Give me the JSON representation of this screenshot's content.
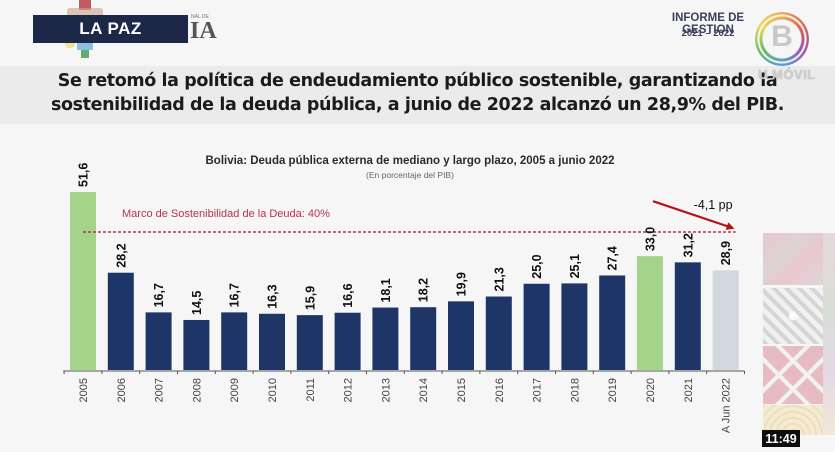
{
  "header": {
    "location_badge": "LA PAZ",
    "brand_small": "NAL DE",
    "brand_big": "IA",
    "report_title": "INFORME DE GESTION",
    "report_years": "2021 – 2022",
    "logo_letter": "B",
    "channel_watermark": "U MÓVIL"
  },
  "banner": {
    "headline": "Se retomó la política de endeudamiento público sostenible, garantizando la sostenibilidad de la deuda pública, a junio de 2022 alcanzó un 28,9% del PIB."
  },
  "clock": "11:49",
  "chart_data": {
    "type": "bar",
    "title": "Bolivia: Deuda pública externa de mediano y largo plazo, 2005 a junio 2022",
    "subtitle": "(En porcentaje del PIB)",
    "xlabel": "",
    "ylabel": "",
    "ylim": [
      0,
      55
    ],
    "grid": false,
    "categories": [
      "2005",
      "2006",
      "2007",
      "2008",
      "2009",
      "2010",
      "2011",
      "2012",
      "2013",
      "2014",
      "2015",
      "2016",
      "2017",
      "2018",
      "2019",
      "2020",
      "2021",
      "A Jun 2022"
    ],
    "values": [
      51.6,
      28.2,
      16.7,
      14.5,
      16.7,
      16.3,
      15.9,
      16.6,
      18.1,
      18.2,
      19.9,
      21.3,
      25.0,
      25.1,
      27.4,
      33.0,
      31.2,
      28.9
    ],
    "value_labels": [
      "51,6",
      "28,2",
      "16,7",
      "14,5",
      "16,7",
      "16,3",
      "15,9",
      "16,6",
      "18,1",
      "18,2",
      "19,9",
      "21,3",
      "25,0",
      "25,1",
      "27,4",
      "33,0",
      "31,2",
      "28,9"
    ],
    "bar_colors": [
      "#a3d48a",
      "#1e3568",
      "#1e3568",
      "#1e3568",
      "#1e3568",
      "#1e3568",
      "#1e3568",
      "#1e3568",
      "#1e3568",
      "#1e3568",
      "#1e3568",
      "#1e3568",
      "#1e3568",
      "#1e3568",
      "#1e3568",
      "#a3d48a",
      "#1e3568",
      "#d3d7df"
    ],
    "reference_line": {
      "value": 40,
      "label": "Marco de Sostenibilidad de la Deuda: 40%",
      "color": "#b8324e",
      "style": "dashed"
    },
    "annotation": {
      "text": "-4,1 pp",
      "from_category": "2020",
      "to_category": "A Jun 2022",
      "arrow_color": "#b5121b"
    }
  }
}
